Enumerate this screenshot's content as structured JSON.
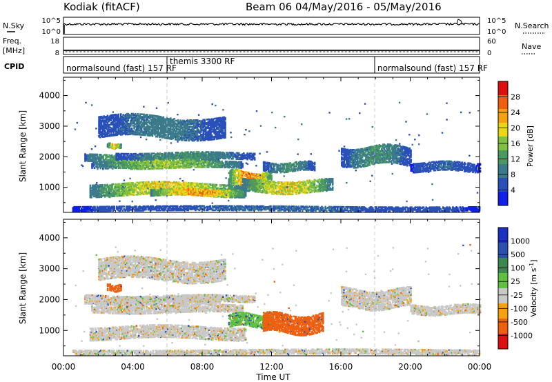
{
  "header": {
    "station": "Kodiak (fitACF)",
    "beam_info": "Beam 06  04/May/2016 - 05/May/2016"
  },
  "top_panels": {
    "nsky_label": "N.Sky",
    "nsearch_label": "N.Search",
    "nsky_ticks": [
      "10^5",
      "10^0"
    ],
    "nsearch_ticks": [
      "10^5",
      "10^0"
    ],
    "freq_label_1": "Freq.",
    "freq_label_2": "[MHz]",
    "freq_ticks": [
      "18",
      "8"
    ],
    "nave_label": "Nave",
    "nave_ticks": [
      "60",
      "0"
    ],
    "cpid_label": "CPID",
    "cpid_segments": [
      {
        "label": "normalsound (fast) 157 RF",
        "start_h": 0,
        "end_h": 6
      },
      {
        "label": "themis 3300 RF",
        "start_h": 6,
        "end_h": 18
      },
      {
        "label": "normalsound (fast) 157 RF",
        "start_h": 18,
        "end_h": 24
      }
    ]
  },
  "chart_data": [
    {
      "type": "heatmap",
      "name": "power",
      "ylabel": "Slant Range [km]",
      "xlabel": "Time UT",
      "x_ticks": [
        "00:00",
        "04:00",
        "08:00",
        "12:00",
        "16:00",
        "20:00",
        "00:00"
      ],
      "x_range_hours": [
        0,
        24
      ],
      "y_ticks": [
        1000,
        2000,
        3000,
        4000
      ],
      "ylim": [
        180,
        4600
      ],
      "colorbar_label": "Power [dB]",
      "colorbar_ticks": [
        "4",
        "8",
        "12",
        "16",
        "20",
        "24",
        "28"
      ],
      "colorbar_range": [
        0,
        30
      ],
      "colors": [
        "#1020e8",
        "#2850b8",
        "#3a7a8a",
        "#4a9a60",
        "#80c040",
        "#e8d818",
        "#f5a010",
        "#ee6010",
        "#dd1010"
      ],
      "echo_bands": [
        {
          "t0": 2.0,
          "t1": 9.3,
          "r0": 2600,
          "r1": 3300,
          "pmax": 10
        },
        {
          "t0": 2.5,
          "t1": 3.3,
          "r0": 2250,
          "r1": 2400,
          "pmax": 24
        },
        {
          "t0": 1.2,
          "t1": 9.0,
          "r0": 1800,
          "r1": 2050,
          "pmax": 18
        },
        {
          "t0": 1.6,
          "t1": 10.3,
          "r0": 1600,
          "r1": 1800,
          "pmax": 18
        },
        {
          "t0": 3.0,
          "t1": 11.0,
          "r0": 1900,
          "r1": 2100,
          "pmax": 12
        },
        {
          "t0": 1.5,
          "t1": 10.5,
          "r0": 700,
          "r1": 1100,
          "pmax": 22
        },
        {
          "t0": 5.0,
          "t1": 10.5,
          "r0": 700,
          "r1": 900,
          "pmax": 26
        },
        {
          "t0": 9.5,
          "t1": 12.0,
          "r0": 1000,
          "r1": 1500,
          "pmax": 28
        },
        {
          "t0": 10.3,
          "t1": 15.5,
          "r0": 800,
          "r1": 1200,
          "pmax": 22
        },
        {
          "t0": 11.5,
          "t1": 14.5,
          "r0": 1500,
          "r1": 1800,
          "pmax": 12
        },
        {
          "t0": 16.0,
          "t1": 20.0,
          "r0": 1700,
          "r1": 2300,
          "pmax": 12
        },
        {
          "t0": 20.0,
          "t1": 24.0,
          "r0": 1500,
          "r1": 1800,
          "pmax": 8
        },
        {
          "t0": 0.5,
          "t1": 24.0,
          "r0": 200,
          "r1": 350,
          "pmax": 8
        }
      ]
    },
    {
      "type": "heatmap",
      "name": "velocity",
      "ylabel": "Slant Range [km]",
      "xlabel": "Time UT",
      "x_ticks": [
        "00:00",
        "04:00",
        "08:00",
        "12:00",
        "16:00",
        "20:00",
        "00:00"
      ],
      "x_range_hours": [
        0,
        24
      ],
      "y_ticks": [
        1000,
        2000,
        3000,
        4000
      ],
      "ylim": [
        180,
        4600
      ],
      "colorbar_label": "Velocity [m s^-1]",
      "colorbar_ticks": [
        "1000",
        "500",
        "100",
        "25",
        "-25",
        "-100",
        "-500",
        "-1000"
      ],
      "colorbar_range": [
        -1200,
        1200
      ],
      "colors": [
        "#dd1010",
        "#ee6010",
        "#f5a010",
        "#c8c8c8",
        "#60c040",
        "#3a8a50",
        "#2a50b0",
        "#1a30c0"
      ],
      "echo_bands": [
        {
          "t0": 2.0,
          "t1": 9.3,
          "r0": 2600,
          "r1": 3300,
          "vel": 0
        },
        {
          "t0": 2.5,
          "t1": 3.3,
          "r0": 2250,
          "r1": 2450,
          "vel": -150
        },
        {
          "t0": 1.2,
          "t1": 9.0,
          "r0": 1800,
          "r1": 2100,
          "vel": 0
        },
        {
          "t0": 1.6,
          "t1": 10.3,
          "r0": 1550,
          "r1": 1800,
          "vel": 0
        },
        {
          "t0": 3.0,
          "t1": 11.0,
          "r0": 1900,
          "r1": 2100,
          "vel": 0
        },
        {
          "t0": 1.5,
          "t1": 10.5,
          "r0": 700,
          "r1": 1100,
          "vel": 0
        },
        {
          "t0": 9.5,
          "t1": 12.0,
          "r0": 1100,
          "r1": 1500,
          "vel": 80
        },
        {
          "t0": 11.5,
          "t1": 15.0,
          "r0": 900,
          "r1": 1500,
          "vel": -200
        },
        {
          "t0": 16.0,
          "t1": 20.0,
          "r0": 1700,
          "r1": 2300,
          "vel": 0
        },
        {
          "t0": 20.0,
          "t1": 24.0,
          "r0": 1500,
          "r1": 1800,
          "vel": 0
        },
        {
          "t0": 0.5,
          "t1": 24.0,
          "r0": 200,
          "r1": 350,
          "vel": 0
        }
      ]
    }
  ]
}
